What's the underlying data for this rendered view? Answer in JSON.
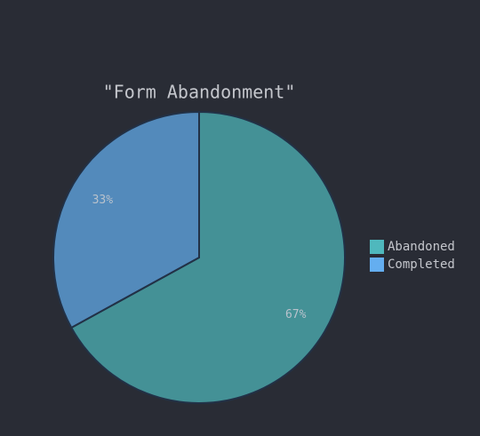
{
  "chart_data": {
    "type": "pie",
    "title": "\"Form Abandonment\"",
    "categories": [
      "Abandoned",
      "Completed"
    ],
    "values": [
      67,
      33
    ],
    "value_labels": [
      "67%",
      "33%"
    ],
    "colors": [
      "#4fb8bd",
      "#64aef0"
    ],
    "legend": "right"
  }
}
